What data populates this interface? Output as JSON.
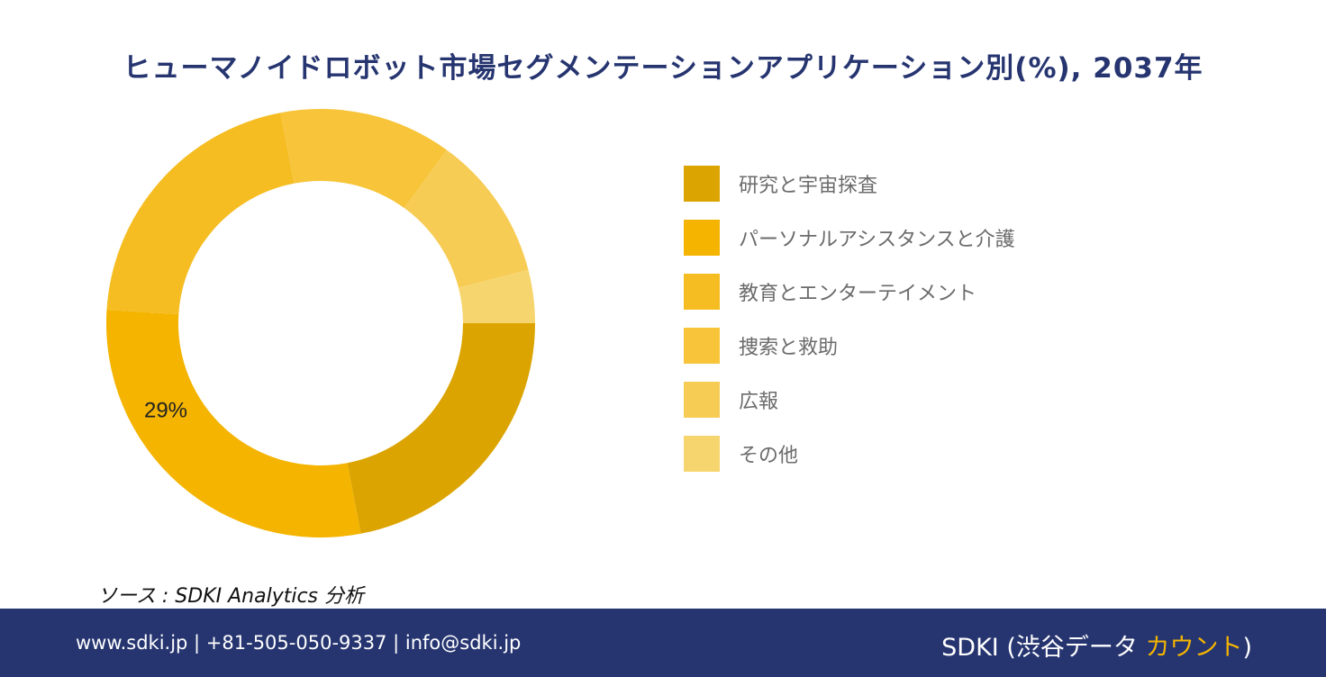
{
  "title": "ヒューマノイドロボット市場セグメンテーションアプリケーション別(%), 2037年",
  "chart_data": {
    "type": "pie",
    "donut": true,
    "title": "ヒューマノイドロボット市場セグメンテーションアプリケーション別(%), 2037年",
    "categories": [
      "研究と宇宙探査",
      "パーソナルアシスタンスと介護",
      "教育とエンターテイメント",
      "捜索と救助",
      "広報",
      "その他"
    ],
    "values": [
      22,
      29,
      21,
      13,
      11,
      4
    ],
    "colors": [
      "#dba400",
      "#f4b400",
      "#f5bd22",
      "#f7c43a",
      "#f7cc55",
      "#f7d56e"
    ],
    "data_labels": [
      "",
      "29%",
      "",
      "",
      "",
      ""
    ],
    "legend_position": "right"
  },
  "source_text": "ソース : SDKI Analytics 分析",
  "footer": {
    "contact": "www.sdki.jp | +81-505-050-9337 | info@sdki.jp",
    "brand_main": "SDKI (渋谷データ ",
    "brand_accent": "カウント",
    "brand_close": ")"
  }
}
